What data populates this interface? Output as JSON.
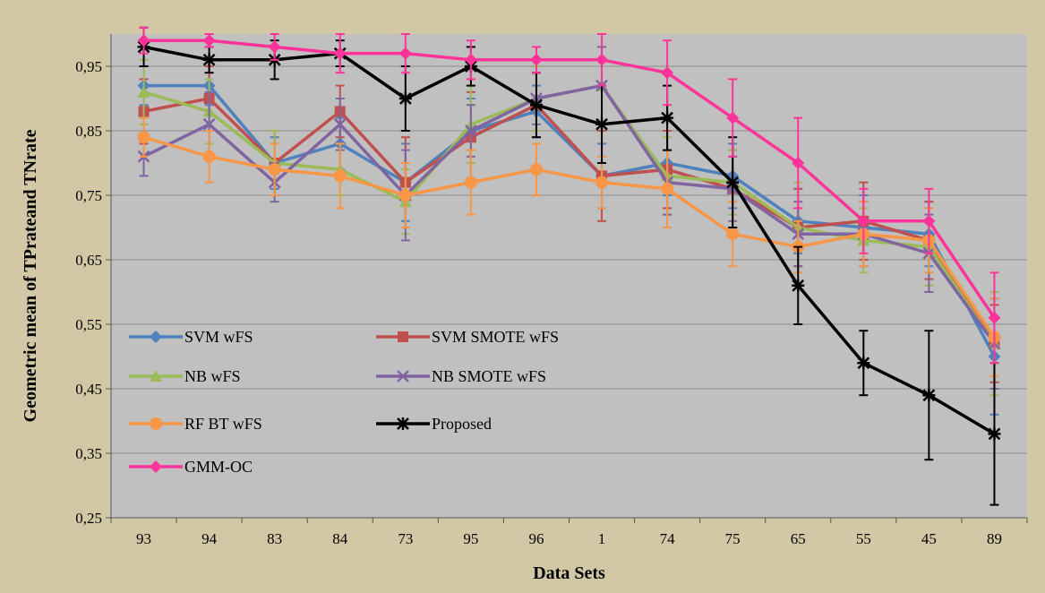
{
  "chart_data": {
    "type": "line",
    "title": "",
    "xlabel": "Data Sets",
    "ylabel": "Geometric mean of TPrateand TNrate",
    "ylim": [
      0.25,
      1.0
    ],
    "yticks": [
      "0,25",
      "0,35",
      "0,45",
      "0,55",
      "0,65",
      "0,75",
      "0,85",
      "0,95"
    ],
    "ytick_values": [
      0.25,
      0.35,
      0.45,
      0.55,
      0.65,
      0.75,
      0.85,
      0.95
    ],
    "grid": true,
    "legend_position": "inside-bottom-left",
    "background_color": "#d2c8a6",
    "plot_color": "#c0c0c0",
    "categories": [
      "93",
      "94",
      "83",
      "84",
      "73",
      "95",
      "96",
      "1",
      "74",
      "75",
      "65",
      "55",
      "45",
      "89"
    ],
    "series": [
      {
        "name": "SVM wFS",
        "color": "#4f81bd",
        "marker": "diamond",
        "values": [
          0.92,
          0.92,
          0.8,
          0.83,
          0.77,
          0.85,
          0.88,
          0.78,
          0.8,
          0.78,
          0.71,
          0.7,
          0.69,
          0.5
        ],
        "errors": [
          0.03,
          0.03,
          0.04,
          0.04,
          0.06,
          0.05,
          0.04,
          0.05,
          0.05,
          0.05,
          0.05,
          0.05,
          0.05,
          0.09
        ]
      },
      {
        "name": "SVM SMOTE  wFS",
        "color": "#c0504d",
        "marker": "square",
        "values": [
          0.88,
          0.9,
          0.8,
          0.88,
          0.77,
          0.84,
          0.89,
          0.78,
          0.79,
          0.76,
          0.7,
          0.71,
          0.68,
          0.52
        ],
        "errors": [
          0.05,
          0.05,
          0.05,
          0.04,
          0.07,
          0.07,
          0.05,
          0.07,
          0.06,
          0.06,
          0.06,
          0.06,
          0.06,
          0.06
        ]
      },
      {
        "name": "NB wFS",
        "color": "#9bbb59",
        "marker": "triangle",
        "values": [
          0.91,
          0.88,
          0.8,
          0.79,
          0.74,
          0.86,
          0.9,
          0.92,
          0.78,
          0.77,
          0.7,
          0.68,
          0.67,
          0.52
        ],
        "errors": [
          0.05,
          0.05,
          0.05,
          0.04,
          0.05,
          0.06,
          0.05,
          0.06,
          0.06,
          0.05,
          0.07,
          0.05,
          0.06,
          0.08
        ]
      },
      {
        "name": "NB SMOTE  wFS",
        "color": "#8064a2",
        "marker": "x",
        "values": [
          0.81,
          0.86,
          0.77,
          0.86,
          0.75,
          0.85,
          0.9,
          0.92,
          0.77,
          0.76,
          0.69,
          0.69,
          0.66,
          0.52
        ],
        "errors": [
          0.03,
          0.05,
          0.03,
          0.04,
          0.07,
          0.04,
          0.04,
          0.06,
          0.05,
          0.05,
          0.05,
          0.05,
          0.06,
          0.07
        ]
      },
      {
        "name": "RF BT wFS",
        "color": "#f79646",
        "marker": "circle",
        "values": [
          0.84,
          0.81,
          0.79,
          0.78,
          0.75,
          0.77,
          0.79,
          0.77,
          0.76,
          0.69,
          0.67,
          0.69,
          0.68,
          0.53
        ],
        "errors": [
          0.03,
          0.04,
          0.04,
          0.05,
          0.05,
          0.05,
          0.04,
          0.04,
          0.06,
          0.05,
          0.04,
          0.05,
          0.05,
          0.06
        ]
      },
      {
        "name": "Proposed",
        "color": "#000000",
        "marker": "star",
        "values": [
          0.98,
          0.96,
          0.96,
          0.97,
          0.9,
          0.95,
          0.89,
          0.86,
          0.87,
          0.77,
          0.61,
          0.49,
          0.44,
          0.38
        ],
        "errors": [
          0.03,
          0.02,
          0.03,
          0.02,
          0.05,
          0.03,
          0.05,
          0.06,
          0.05,
          0.07,
          0.06,
          0.05,
          0.1,
          0.11
        ]
      },
      {
        "name": "GMM-OC",
        "color": "#ff3399",
        "marker": "diamond",
        "values": [
          0.99,
          0.99,
          0.98,
          0.97,
          0.97,
          0.96,
          0.96,
          0.96,
          0.94,
          0.87,
          0.8,
          0.71,
          0.71,
          0.56
        ],
        "errors": [
          0.02,
          0.01,
          0.02,
          0.03,
          0.03,
          0.03,
          0.02,
          0.04,
          0.05,
          0.06,
          0.07,
          0.05,
          0.05,
          0.07
        ]
      }
    ]
  }
}
